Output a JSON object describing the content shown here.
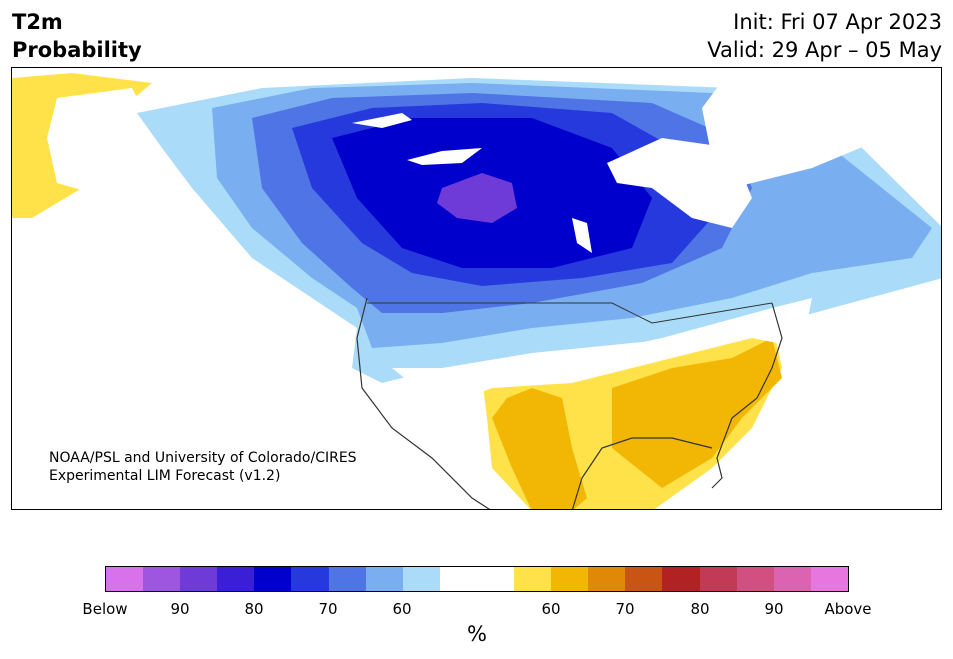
{
  "header": {
    "title_line1": "T2m",
    "title_line2": "Probability",
    "init": "Init: Fri 07 Apr 2023",
    "valid": "Valid: 29 Apr – 05 May"
  },
  "credit": {
    "line1": "NOAA/PSL and University of Colorado/CIRES",
    "line2": "Experimental LIM Forecast (v1.2)"
  },
  "colorbar": {
    "unit": "%",
    "colors": [
      "#d772ea",
      "#9e56e1",
      "#6e3bd8",
      "#3b1fd6",
      "#0000cd",
      "#2639dd",
      "#4f74e6",
      "#79aef0",
      "#aadcfa",
      "#ffffff",
      "#ffffff",
      "#ffe24a",
      "#f2b705",
      "#e08808",
      "#c95515",
      "#b32222",
      "#c33a56",
      "#d24f82",
      "#dc62b2",
      "#e577de"
    ],
    "labels": [
      "Below",
      "90",
      "80",
      "70",
      "60",
      "60",
      "70",
      "80",
      "90",
      "Above"
    ]
  },
  "map_regions": {
    "cold_core": "Central Canada / Hudson Bay region",
    "warm_core": "Southeastern US and Mexico"
  }
}
